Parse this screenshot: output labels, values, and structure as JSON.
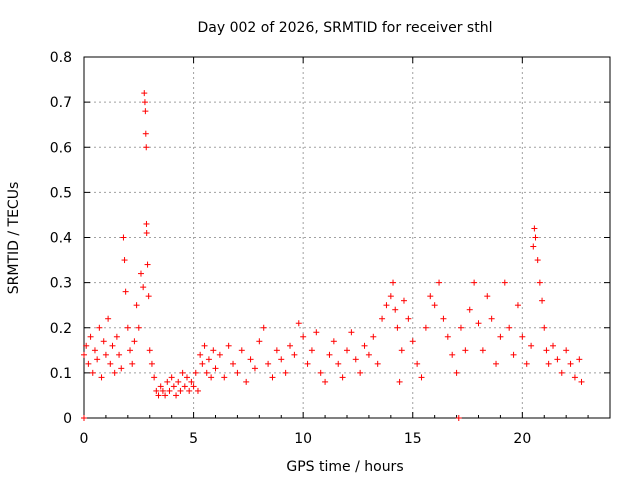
{
  "chart_data": {
    "type": "scatter",
    "title": "Day 002 of 2026, SRMTID for receiver sthl",
    "xlabel": "GPS time / hours",
    "ylabel": "SRMTID / TECUs",
    "xlim": [
      0,
      24
    ],
    "ylim": [
      0,
      0.8
    ],
    "xticks": [
      0,
      5,
      10,
      15,
      20
    ],
    "xtick_labels": [
      "0",
      "5",
      "10",
      "15",
      "20"
    ],
    "yticks": [
      0,
      0.1,
      0.2,
      0.3,
      0.4,
      0.5,
      0.6,
      0.7,
      0.8
    ],
    "ytick_labels": [
      "0",
      "0.1",
      "0.2",
      "0.3",
      "0.4",
      "0.5",
      "0.6",
      "0.7",
      "0.8"
    ],
    "grid": true,
    "marker": "plus",
    "color": "#ff0000",
    "series": [
      {
        "name": "SRMTID",
        "points": [
          [
            0.0,
            0.0
          ],
          [
            17.1,
            0.0
          ],
          [
            0.0,
            0.14
          ],
          [
            0.1,
            0.16
          ],
          [
            0.2,
            0.12
          ],
          [
            0.3,
            0.18
          ],
          [
            0.4,
            0.1
          ],
          [
            0.5,
            0.15
          ],
          [
            0.6,
            0.13
          ],
          [
            0.7,
            0.2
          ],
          [
            0.8,
            0.09
          ],
          [
            0.9,
            0.17
          ],
          [
            1.0,
            0.14
          ],
          [
            1.1,
            0.22
          ],
          [
            1.2,
            0.12
          ],
          [
            1.3,
            0.16
          ],
          [
            1.4,
            0.1
          ],
          [
            1.5,
            0.18
          ],
          [
            1.6,
            0.14
          ],
          [
            1.7,
            0.11
          ],
          [
            1.8,
            0.4
          ],
          [
            1.85,
            0.35
          ],
          [
            1.9,
            0.28
          ],
          [
            2.0,
            0.2
          ],
          [
            2.1,
            0.15
          ],
          [
            2.2,
            0.12
          ],
          [
            2.3,
            0.17
          ],
          [
            2.4,
            0.25
          ],
          [
            2.5,
            0.2
          ],
          [
            2.6,
            0.32
          ],
          [
            2.7,
            0.29
          ],
          [
            2.75,
            0.72
          ],
          [
            2.78,
            0.7
          ],
          [
            2.8,
            0.68
          ],
          [
            2.82,
            0.63
          ],
          [
            2.84,
            0.6
          ],
          [
            2.85,
            0.43
          ],
          [
            2.86,
            0.41
          ],
          [
            2.9,
            0.34
          ],
          [
            2.95,
            0.27
          ],
          [
            3.0,
            0.15
          ],
          [
            3.1,
            0.12
          ],
          [
            3.2,
            0.09
          ],
          [
            3.3,
            0.06
          ],
          [
            3.4,
            0.05
          ],
          [
            3.5,
            0.07
          ],
          [
            3.6,
            0.06
          ],
          [
            3.7,
            0.05
          ],
          [
            3.8,
            0.08
          ],
          [
            3.9,
            0.06
          ],
          [
            4.0,
            0.09
          ],
          [
            4.1,
            0.07
          ],
          [
            4.2,
            0.05
          ],
          [
            4.3,
            0.08
          ],
          [
            4.4,
            0.06
          ],
          [
            4.5,
            0.1
          ],
          [
            4.6,
            0.07
          ],
          [
            4.7,
            0.09
          ],
          [
            4.8,
            0.06
          ],
          [
            4.9,
            0.08
          ],
          [
            5.0,
            0.07
          ],
          [
            5.1,
            0.1
          ],
          [
            5.2,
            0.06
          ],
          [
            5.3,
            0.14
          ],
          [
            5.4,
            0.12
          ],
          [
            5.5,
            0.16
          ],
          [
            5.6,
            0.1
          ],
          [
            5.7,
            0.13
          ],
          [
            5.8,
            0.09
          ],
          [
            5.9,
            0.15
          ],
          [
            6.0,
            0.11
          ],
          [
            6.2,
            0.14
          ],
          [
            6.4,
            0.09
          ],
          [
            6.6,
            0.16
          ],
          [
            6.8,
            0.12
          ],
          [
            7.0,
            0.1
          ],
          [
            7.2,
            0.15
          ],
          [
            7.4,
            0.08
          ],
          [
            7.6,
            0.13
          ],
          [
            7.8,
            0.11
          ],
          [
            8.0,
            0.17
          ],
          [
            8.2,
            0.2
          ],
          [
            8.4,
            0.12
          ],
          [
            8.6,
            0.09
          ],
          [
            8.8,
            0.15
          ],
          [
            9.0,
            0.13
          ],
          [
            9.2,
            0.1
          ],
          [
            9.4,
            0.16
          ],
          [
            9.6,
            0.14
          ],
          [
            9.8,
            0.21
          ],
          [
            10.0,
            0.18
          ],
          [
            10.2,
            0.12
          ],
          [
            10.4,
            0.15
          ],
          [
            10.6,
            0.19
          ],
          [
            10.8,
            0.1
          ],
          [
            11.0,
            0.08
          ],
          [
            11.2,
            0.14
          ],
          [
            11.4,
            0.17
          ],
          [
            11.6,
            0.12
          ],
          [
            11.8,
            0.09
          ],
          [
            12.0,
            0.15
          ],
          [
            12.2,
            0.19
          ],
          [
            12.4,
            0.13
          ],
          [
            12.6,
            0.1
          ],
          [
            12.8,
            0.16
          ],
          [
            13.0,
            0.14
          ],
          [
            13.2,
            0.18
          ],
          [
            13.4,
            0.12
          ],
          [
            13.6,
            0.22
          ],
          [
            13.8,
            0.25
          ],
          [
            14.0,
            0.27
          ],
          [
            14.1,
            0.3
          ],
          [
            14.2,
            0.24
          ],
          [
            14.3,
            0.2
          ],
          [
            14.4,
            0.08
          ],
          [
            14.5,
            0.15
          ],
          [
            14.6,
            0.26
          ],
          [
            14.8,
            0.22
          ],
          [
            15.0,
            0.17
          ],
          [
            15.2,
            0.12
          ],
          [
            15.4,
            0.09
          ],
          [
            15.6,
            0.2
          ],
          [
            15.8,
            0.27
          ],
          [
            16.0,
            0.25
          ],
          [
            16.2,
            0.3
          ],
          [
            16.4,
            0.22
          ],
          [
            16.6,
            0.18
          ],
          [
            16.8,
            0.14
          ],
          [
            17.0,
            0.1
          ],
          [
            17.2,
            0.2
          ],
          [
            17.4,
            0.15
          ],
          [
            17.6,
            0.24
          ],
          [
            17.8,
            0.3
          ],
          [
            18.0,
            0.21
          ],
          [
            18.2,
            0.15
          ],
          [
            18.4,
            0.27
          ],
          [
            18.6,
            0.22
          ],
          [
            18.8,
            0.12
          ],
          [
            19.0,
            0.18
          ],
          [
            19.2,
            0.3
          ],
          [
            19.4,
            0.2
          ],
          [
            19.6,
            0.14
          ],
          [
            19.8,
            0.25
          ],
          [
            20.0,
            0.18
          ],
          [
            20.2,
            0.12
          ],
          [
            20.4,
            0.16
          ],
          [
            20.5,
            0.38
          ],
          [
            20.55,
            0.42
          ],
          [
            20.6,
            0.4
          ],
          [
            20.7,
            0.35
          ],
          [
            20.8,
            0.3
          ],
          [
            20.9,
            0.26
          ],
          [
            21.0,
            0.2
          ],
          [
            21.1,
            0.15
          ],
          [
            21.2,
            0.12
          ],
          [
            21.4,
            0.16
          ],
          [
            21.6,
            0.13
          ],
          [
            21.8,
            0.1
          ],
          [
            22.0,
            0.15
          ],
          [
            22.2,
            0.12
          ],
          [
            22.4,
            0.09
          ],
          [
            22.6,
            0.13
          ],
          [
            22.7,
            0.08
          ]
        ]
      }
    ]
  }
}
